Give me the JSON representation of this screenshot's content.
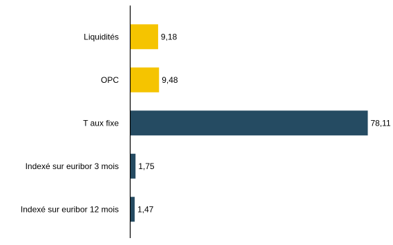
{
  "chart_data": {
    "type": "bar",
    "orientation": "horizontal",
    "categories": [
      "Liquidités",
      "OPC",
      "T aux fixe",
      "Indexé sur euribor 3 mois",
      "Indexé sur euribor 12 mois"
    ],
    "values": [
      9.18,
      9.48,
      78.11,
      1.75,
      1.47
    ],
    "value_labels": [
      "9,18",
      "9,48",
      "78,11",
      "1,75",
      "1,47"
    ],
    "bar_colors": [
      "#F5C400",
      "#F5C400",
      "#254B62",
      "#254B62",
      "#254B62"
    ],
    "title": "",
    "xlabel": "",
    "ylabel": "",
    "xlim": [
      0,
      80
    ],
    "grid": false,
    "legend": "none"
  }
}
